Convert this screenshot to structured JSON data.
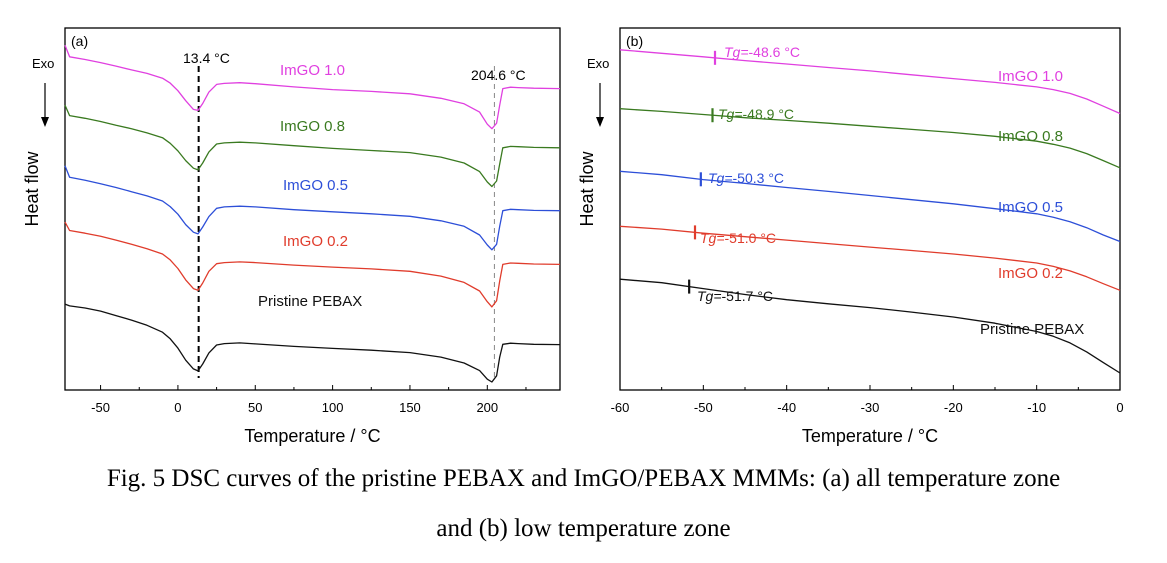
{
  "caption": {
    "line1": "Fig. 5 DSC curves of the pristine PEBAX and ImGO/PEBAX MMMs: (a) all temperature zone",
    "line2": "and (b) low temperature zone"
  },
  "chart_data": [
    {
      "type": "line",
      "panel_label": "(a)",
      "xlabel": "Temperature / °C",
      "ylabel": "Heat flow",
      "exo_label": "Exo",
      "xlim": [
        -73,
        247
      ],
      "ylim": [
        0,
        100
      ],
      "xticks": [
        -50,
        0,
        50,
        100,
        150,
        200
      ],
      "grid": false,
      "annotations": [
        {
          "text": "13.4 °C",
          "x": 13.4,
          "style": "dashed"
        },
        {
          "text": "204.6 °C",
          "x": 204.6,
          "style": "dashed-thin"
        }
      ],
      "series": [
        {
          "name": "ImGO 1.0",
          "color": "#e040e0",
          "x": [
            -73,
            -70,
            -60,
            -50,
            -40,
            -30,
            -20,
            -10,
            -5,
            0,
            5,
            10,
            13,
            16,
            20,
            25,
            30,
            40,
            50,
            75,
            100,
            125,
            150,
            170,
            185,
            195,
            200,
            203,
            206,
            208,
            210,
            215,
            220,
            230,
            247
          ],
          "y": [
            97.3,
            94.0,
            93.2,
            92.3,
            91.3,
            90.2,
            89.2,
            87.8,
            86.4,
            84.2,
            81.3,
            78.8,
            78.5,
            80.5,
            83.8,
            86.0,
            86.3,
            86.5,
            86.2,
            85.3,
            84.5,
            84.0,
            83.3,
            82.0,
            80.4,
            78.0,
            74.5,
            73.2,
            74.8,
            80.0,
            84.8,
            85.2,
            85.1,
            84.9,
            84.8
          ]
        },
        {
          "name": "ImGO 0.8",
          "color": "#3a7a20",
          "x": [
            -73,
            -70,
            -60,
            -50,
            -40,
            -30,
            -20,
            -10,
            -5,
            0,
            5,
            10,
            13,
            16,
            20,
            25,
            30,
            40,
            50,
            75,
            100,
            125,
            150,
            170,
            185,
            195,
            200,
            203,
            206,
            208,
            210,
            215,
            220,
            230,
            247
          ],
          "y": [
            80.0,
            77.0,
            76.2,
            75.3,
            74.2,
            73.2,
            72.0,
            70.6,
            69.0,
            66.8,
            64.0,
            61.8,
            61.3,
            63.3,
            66.5,
            68.8,
            69.1,
            69.3,
            69.1,
            68.3,
            67.5,
            66.9,
            66.3,
            65.0,
            63.3,
            60.8,
            57.8,
            56.5,
            58.1,
            63.0,
            67.7,
            68.1,
            68.0,
            67.8,
            67.7
          ]
        },
        {
          "name": "ImGO 0.5",
          "color": "#2d4fd8",
          "x": [
            -73,
            -70,
            -60,
            -50,
            -40,
            -30,
            -20,
            -10,
            -5,
            0,
            5,
            10,
            13,
            16,
            20,
            25,
            30,
            40,
            50,
            75,
            100,
            125,
            150,
            170,
            185,
            195,
            200,
            203,
            206,
            208,
            210,
            215,
            220,
            230,
            247
          ],
          "y": [
            62.5,
            59.2,
            58.3,
            57.3,
            56.2,
            55.0,
            53.8,
            52.3,
            50.7,
            48.5,
            45.5,
            43.3,
            42.8,
            44.8,
            47.8,
            50.2,
            50.6,
            50.8,
            50.6,
            49.8,
            49.2,
            48.6,
            47.9,
            46.6,
            45.0,
            42.5,
            39.6,
            38.2,
            39.8,
            45.0,
            49.5,
            49.9,
            49.8,
            49.6,
            49.5
          ]
        },
        {
          "name": "ImGO 0.2",
          "color": "#e03c2c",
          "x": [
            -73,
            -70,
            -60,
            -50,
            -40,
            -30,
            -20,
            -10,
            -5,
            0,
            5,
            10,
            13,
            16,
            20,
            25,
            30,
            40,
            50,
            75,
            100,
            125,
            150,
            170,
            185,
            195,
            200,
            203,
            206,
            208,
            210,
            215,
            220,
            230,
            247
          ],
          "y": [
            46.2,
            43.8,
            43.0,
            42.1,
            41.0,
            39.8,
            38.5,
            37.0,
            35.3,
            32.8,
            29.5,
            27.0,
            26.5,
            28.6,
            32.0,
            34.2,
            34.5,
            34.7,
            34.5,
            33.8,
            33.2,
            32.7,
            32.0,
            30.6,
            28.8,
            26.3,
            23.2,
            21.7,
            23.5,
            29.2,
            34.0,
            34.4,
            34.3,
            34.1,
            34.0
          ]
        },
        {
          "name": "Pristine PEBAX",
          "color": "#111111",
          "x": [
            -73,
            -70,
            -60,
            -50,
            -40,
            -30,
            -20,
            -10,
            -5,
            0,
            5,
            10,
            13,
            16,
            20,
            25,
            30,
            40,
            50,
            75,
            100,
            125,
            150,
            170,
            185,
            195,
            200,
            203,
            206,
            208,
            210,
            215,
            220,
            230,
            247
          ],
          "y": [
            22.5,
            22.0,
            21.4,
            20.5,
            19.2,
            17.9,
            16.4,
            14.4,
            12.5,
            9.8,
            6.3,
            3.8,
            3.2,
            5.2,
            8.4,
            10.7,
            11.1,
            11.3,
            11.0,
            10.3,
            9.7,
            9.2,
            8.5,
            7.2,
            5.5,
            3.3,
            0.8,
            0.0,
            1.8,
            7.2,
            10.9,
            11.2,
            11.1,
            10.9,
            10.8
          ]
        }
      ]
    },
    {
      "type": "line",
      "panel_label": "(b)",
      "xlabel": "Temperature / °C",
      "ylabel": "Heat flow",
      "exo_label": "Exo",
      "xlim": [
        -60,
        0
      ],
      "ylim": [
        0,
        100
      ],
      "xticks": [
        -60,
        -50,
        -40,
        -30,
        -20,
        -10,
        0
      ],
      "grid": false,
      "series": [
        {
          "name": "ImGO 1.0",
          "color": "#e040e0",
          "tg": -48.6,
          "tg_text": "-48.6 °C",
          "tg_symbol": "Tg=",
          "x": [
            -60,
            -55,
            -50,
            -45,
            -40,
            -35,
            -30,
            -25,
            -20,
            -15,
            -10,
            -8,
            -6,
            -4,
            -2,
            0
          ],
          "y": [
            96.0,
            95.0,
            94.0,
            92.9,
            91.9,
            90.9,
            89.9,
            88.8,
            87.7,
            86.6,
            85.3,
            84.5,
            83.4,
            81.8,
            79.7,
            77.6
          ]
        },
        {
          "name": "ImGO 0.8",
          "color": "#3a7a20",
          "tg": -48.9,
          "tg_text": "-48.9 °C",
          "tg_symbol": "Tg=",
          "x": [
            -60,
            -55,
            -50,
            -45,
            -40,
            -35,
            -30,
            -25,
            -20,
            -15,
            -10,
            -8,
            -6,
            -4,
            -2,
            0
          ],
          "y": [
            79.0,
            78.2,
            77.3,
            76.4,
            75.6,
            74.8,
            73.9,
            73.0,
            72.1,
            71.0,
            69.6,
            68.7,
            67.6,
            66.0,
            64.0,
            61.9
          ]
        },
        {
          "name": "ImGO 0.5",
          "color": "#2d4fd8",
          "tg": -50.3,
          "tg_text": "-50.3 °C",
          "tg_symbol": "Tg=",
          "x": [
            -60,
            -55,
            -50,
            -45,
            -40,
            -35,
            -30,
            -25,
            -20,
            -15,
            -10,
            -8,
            -6,
            -4,
            -2,
            0
          ],
          "y": [
            60.9,
            59.9,
            58.5,
            57.4,
            56.2,
            55.1,
            53.9,
            52.7,
            51.5,
            50.1,
            48.6,
            47.6,
            46.3,
            44.6,
            42.5,
            40.6
          ]
        },
        {
          "name": "ImGO 0.2",
          "color": "#e03c2c",
          "tg": -51.0,
          "tg_text": "-51.0 °C",
          "tg_symbol": "Tg=",
          "x": [
            -60,
            -55,
            -50,
            -45,
            -40,
            -35,
            -30,
            -25,
            -20,
            -15,
            -10,
            -8,
            -6,
            -4,
            -2,
            0
          ],
          "y": [
            45.0,
            44.2,
            43.0,
            42.0,
            41.0,
            40.0,
            39.0,
            38.0,
            37.0,
            35.8,
            34.4,
            33.4,
            32.1,
            30.4,
            28.4,
            26.5
          ]
        },
        {
          "name": "Pristine PEBAX",
          "color": "#111111",
          "tg": -51.7,
          "tg_text": "-51.7 °C",
          "tg_symbol": "Tg=",
          "x": [
            -60,
            -55,
            -50,
            -45,
            -40,
            -35,
            -30,
            -25,
            -20,
            -15,
            -10,
            -8,
            -6,
            -4,
            -2,
            0
          ],
          "y": [
            29.7,
            28.7,
            27.0,
            25.3,
            23.8,
            22.6,
            21.5,
            20.2,
            18.8,
            17.0,
            14.6,
            13.2,
            11.3,
            8.7,
            5.6,
            2.6
          ]
        }
      ]
    }
  ]
}
